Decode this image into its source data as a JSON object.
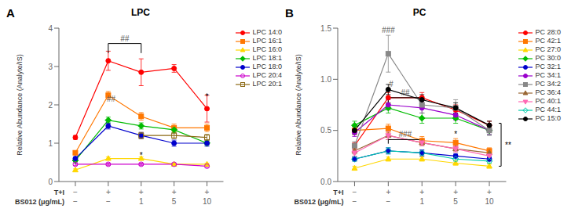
{
  "chart_data": [
    {
      "type": "line",
      "panel": "A",
      "title": "LPC",
      "y_label": "Relative Abundance (Analyte/IS)",
      "category_rows": [
        {
          "name": "T+I",
          "labels": [
            "−",
            "+",
            "+",
            "+",
            "+"
          ]
        },
        {
          "name": "BS012 (μg/mL)",
          "labels": [
            "−",
            "−",
            "1",
            "5",
            "10"
          ]
        }
      ],
      "ylim": [
        0,
        4
      ],
      "yticks": [
        0,
        1,
        2,
        3,
        4
      ],
      "grid": false,
      "legend": "right",
      "series": [
        {
          "name": "LPC 14:0",
          "color": "#FF0000",
          "marker": "circle",
          "values": [
            1.15,
            3.15,
            2.85,
            2.95,
            1.9
          ],
          "errors": [
            0.05,
            0.25,
            0.35,
            0.1,
            0.35
          ]
        },
        {
          "name": "LPC 16:1",
          "color": "#FF7700",
          "marker": "square",
          "values": [
            0.75,
            2.25,
            1.7,
            1.4,
            1.4
          ],
          "errors": [
            0.05,
            0.1,
            0.1,
            0.1,
            0.1
          ]
        },
        {
          "name": "LPC 16:0",
          "color": "#FFD700",
          "marker": "triangle",
          "values": [
            0.3,
            0.6,
            0.6,
            0.45,
            0.45
          ],
          "errors": [
            0.03,
            0.04,
            0.04,
            0.03,
            0.03
          ]
        },
        {
          "name": "LPC 18:1",
          "color": "#00BB00",
          "marker": "diamond",
          "values": [
            0.55,
            1.6,
            1.45,
            1.35,
            1.0
          ],
          "errors": [
            0.04,
            0.08,
            0.08,
            0.08,
            0.05
          ]
        },
        {
          "name": "LPC 18:0",
          "color": "#0000CC",
          "marker": "circle",
          "values": [
            0.6,
            1.45,
            1.2,
            1.0,
            1.0
          ],
          "errors": [
            0.04,
            0.08,
            0.08,
            0.08,
            0.08
          ]
        },
        {
          "name": "LPC 20:4",
          "color": "#CC00CC",
          "marker": "circle_open",
          "values": [
            0.45,
            0.45,
            0.45,
            0.45,
            0.4
          ],
          "errors": [
            0.03,
            0.03,
            0.03,
            0.03,
            0.03
          ]
        },
        {
          "name": "LPC 20:1",
          "color": "#8B6914",
          "marker": "square_open",
          "values": [
            null,
            null,
            1.2,
            1.2,
            1.15
          ],
          "errors": [
            0.0,
            0.0,
            0.08,
            0.08,
            0.08
          ]
        }
      ],
      "annotations": [
        {
          "text": "##",
          "x": 1.5,
          "y": 3.62,
          "color": "#555555"
        },
        {
          "text": "##",
          "x": 1.08,
          "y": 2.05,
          "color": "#555555"
        },
        {
          "text": "*",
          "x": 4.0,
          "y": 2.1,
          "color": "#000000"
        },
        {
          "text": "*",
          "x": 2.0,
          "y": 0.58,
          "color": "#000000"
        }
      ],
      "brackets": [
        {
          "x": [
            1,
            1,
            2,
            2
          ],
          "y": [
            3.35,
            3.6,
            3.6,
            3.35
          ],
          "color": "#000000"
        }
      ]
    },
    {
      "type": "line",
      "panel": "B",
      "title": "PC",
      "y_label": "Relative Abundance (Analyte/IS)",
      "category_rows": [
        {
          "name": "T+I",
          "labels": [
            "−",
            "+",
            "+",
            "+",
            "+"
          ]
        },
        {
          "name": "BS012 (μg/mL)",
          "labels": [
            "−",
            "−",
            "1",
            "5",
            "10"
          ]
        }
      ],
      "ylim": [
        0,
        1.5
      ],
      "yticks": [
        {
          "value": 0,
          "label": "0.0"
        },
        0.5,
        {
          "value": 1,
          "label": "1.0"
        },
        1.5
      ],
      "grid": false,
      "legend": "right",
      "series": [
        {
          "name": "PC 28:0",
          "color": "#FF0000",
          "marker": "circle",
          "values": [
            0.35,
            0.82,
            0.82,
            0.7,
            0.55
          ],
          "errors": [
            0.03,
            0.05,
            0.05,
            0.05,
            0.04
          ]
        },
        {
          "name": "PC 42:1",
          "color": "#FF7700",
          "marker": "square",
          "values": [
            0.5,
            0.52,
            0.4,
            0.38,
            0.3
          ],
          "errors": [
            0.04,
            0.04,
            0.04,
            0.04,
            0.03
          ]
        },
        {
          "name": "PC 27:0",
          "color": "#FFD700",
          "marker": "triangle",
          "values": [
            0.13,
            0.22,
            0.22,
            0.18,
            0.15
          ],
          "errors": [
            0.02,
            0.02,
            0.02,
            0.02,
            0.02
          ]
        },
        {
          "name": "PC 30:0",
          "color": "#00BB00",
          "marker": "diamond",
          "values": [
            0.55,
            0.72,
            0.62,
            0.62,
            0.5
          ],
          "errors": [
            0.04,
            0.05,
            0.05,
            0.05,
            0.04
          ]
        },
        {
          "name": "PC 32:1",
          "color": "#0000CC",
          "marker": "circle",
          "values": [
            0.22,
            0.3,
            0.28,
            0.25,
            0.22
          ],
          "errors": [
            0.02,
            0.03,
            0.03,
            0.02,
            0.02
          ]
        },
        {
          "name": "PC 34:1",
          "color": "#9900CC",
          "marker": "circle",
          "values": [
            0.48,
            0.75,
            0.72,
            0.65,
            0.5
          ],
          "errors": [
            0.04,
            0.05,
            0.05,
            0.05,
            0.04
          ]
        },
        {
          "name": "PC 34:2",
          "color": "#888888",
          "marker": "square",
          "values": [
            0.35,
            1.25,
            0.75,
            0.72,
            0.5
          ],
          "errors": [
            0.04,
            0.18,
            0.08,
            0.08,
            0.05
          ]
        },
        {
          "name": "PC 36:4",
          "color": "#996633",
          "marker": "triangle",
          "values": [
            0.3,
            0.45,
            0.38,
            0.32,
            0.28
          ],
          "errors": [
            0.03,
            0.04,
            0.03,
            0.03,
            0.02
          ]
        },
        {
          "name": "PC 40:1",
          "color": "#FF69B4",
          "marker": "triangle_down",
          "values": [
            0.28,
            0.45,
            0.38,
            0.32,
            0.25
          ],
          "errors": [
            0.03,
            0.04,
            0.03,
            0.03,
            0.02
          ]
        },
        {
          "name": "PC 44:1",
          "color": "#00CCAA",
          "marker": "diamond_open",
          "values": [
            0.22,
            0.3,
            0.28,
            0.22,
            0.2
          ],
          "errors": [
            0.02,
            0.03,
            0.02,
            0.02,
            0.02
          ]
        },
        {
          "name": "PC 15:0",
          "color": "#000000",
          "marker": "circle",
          "values": [
            0.5,
            0.9,
            0.8,
            0.72,
            0.55
          ],
          "errors": [
            0.04,
            0.05,
            0.05,
            0.05,
            0.04
          ]
        }
      ],
      "annotations": [
        {
          "text": "###",
          "x": 1.0,
          "y": 1.44,
          "color": "#555555"
        },
        {
          "text": "#",
          "x": 1.08,
          "y": 0.91,
          "color": "#555555"
        },
        {
          "text": "##",
          "x": 1.5,
          "y": 0.83,
          "color": "#555555"
        },
        {
          "text": "###",
          "x": 1.5,
          "y": 0.42,
          "color": "#555555"
        },
        {
          "text": "*",
          "x": 3.0,
          "y": 0.42,
          "color": "#000000"
        },
        {
          "text": "**",
          "x": 4.42,
          "y": 0.36,
          "color": "#000000"
        }
      ],
      "brackets": [
        {
          "x": [
            1,
            1,
            2,
            2
          ],
          "y": [
            0.77,
            0.82,
            0.82,
            0.77
          ],
          "color": "#000000"
        },
        {
          "x": [
            1,
            1,
            2,
            2
          ],
          "y": [
            0.37,
            0.41,
            0.41,
            0.37
          ],
          "color": "#000000"
        },
        {
          "x": [
            4.28,
            4.35,
            4.35,
            4.28
          ],
          "y": [
            0.57,
            0.57,
            0.15,
            0.15
          ],
          "color": "#000000"
        }
      ]
    }
  ]
}
